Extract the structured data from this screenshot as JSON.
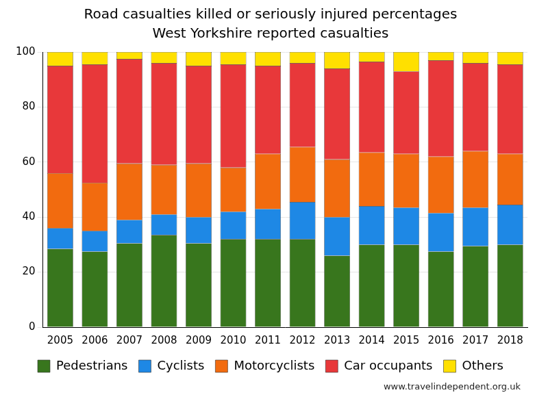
{
  "chart_data": {
    "type": "bar",
    "title": "Road casualties killed or seriously injured percentages",
    "subtitle": "West Yorkshire reported casualties",
    "annotations": [
      "www.travelindependent.org.uk"
    ],
    "categories": [
      "2005",
      "2006",
      "2007",
      "2008",
      "2009",
      "2010",
      "2011",
      "2012",
      "2013",
      "2014",
      "2015",
      "2016",
      "2017",
      "2018"
    ],
    "series": [
      {
        "name": "Pedestrians",
        "color": "#38761d",
        "values": [
          28.5,
          27.5,
          30.5,
          33.5,
          30.5,
          32,
          32,
          32,
          26,
          30,
          30,
          27.5,
          29.5,
          30
        ]
      },
      {
        "name": "Cyclists",
        "color": "#1e88e5",
        "values": [
          7.5,
          7.5,
          8.5,
          7.5,
          9.5,
          10,
          11,
          13.5,
          14,
          14,
          13.5,
          14,
          14,
          14.5
        ]
      },
      {
        "name": "Motorcyclists",
        "color": "#f26b0f",
        "values": [
          20,
          17.5,
          20.5,
          18,
          19.5,
          16,
          20,
          20,
          21,
          19.5,
          19.5,
          20.5,
          20.5,
          18.5
        ]
      },
      {
        "name": "Car occupants",
        "color": "#e8383a",
        "values": [
          39,
          43,
          38,
          37,
          35.5,
          37.5,
          32,
          30.5,
          33,
          33,
          30,
          35,
          32,
          32.5
        ]
      },
      {
        "name": "Others",
        "color": "#ffe000",
        "values": [
          5,
          4.5,
          2.5,
          4,
          5,
          4.5,
          5,
          4,
          6,
          3.5,
          7,
          3,
          4,
          4.5
        ]
      }
    ],
    "stacked": true,
    "ylim": [
      0,
      100
    ],
    "yticks": [
      0,
      20,
      40,
      60,
      80,
      100
    ],
    "grid": true,
    "legend": "bottom"
  }
}
